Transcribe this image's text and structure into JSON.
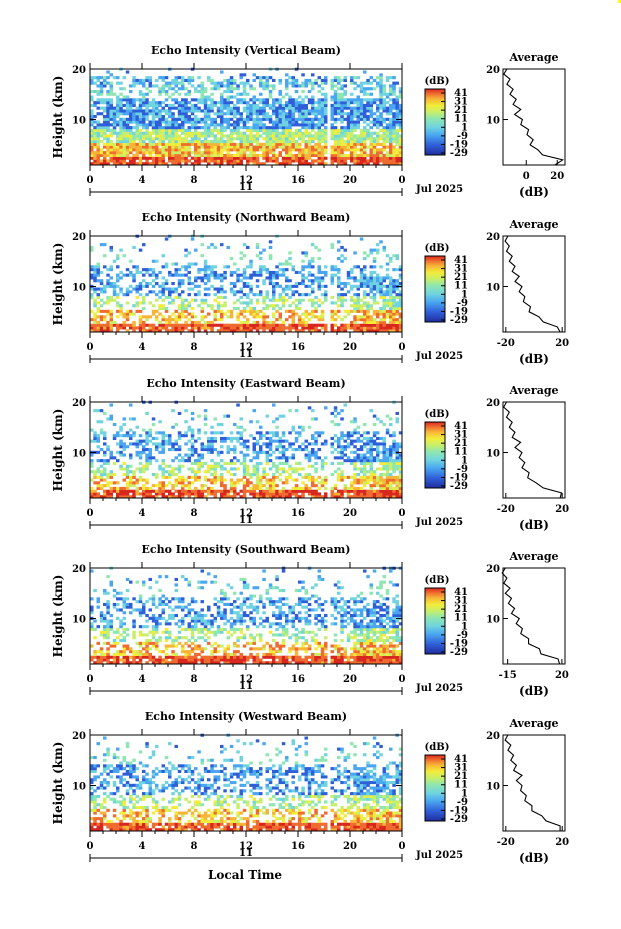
{
  "figure": {
    "xaxis_label": "Local Time",
    "date_label": "Jul 2025",
    "day_label": "11",
    "colorbar_unit": "(dB)",
    "colorbar_ticks": [
      "41",
      "31",
      "21",
      "11",
      "1",
      "-9",
      "-19",
      "-29"
    ],
    "height_axis_label": "Height (km)",
    "time_ticks": [
      "0",
      "4",
      "8",
      "12",
      "16",
      "20",
      "0"
    ],
    "height_ticks": [
      "20",
      "10"
    ],
    "avg_title": "Average",
    "avg_xlabel": "(dB)",
    "colors": {
      "scale": [
        "#202e9e",
        "#2f5fd8",
        "#4aa6f0",
        "#6fd3e0",
        "#8ee6b0",
        "#c8ef6a",
        "#f2ec3a",
        "#f7b437",
        "#ef6b2f",
        "#d8271f"
      ],
      "frame": "#000000",
      "accent_corner": "#ffff00"
    }
  },
  "chart_data": [
    {
      "type": "heatmap",
      "title": "Echo Intensity (Vertical Beam)",
      "xlabel": "",
      "ylabel": "Height (km)",
      "xlim": [
        0,
        24
      ],
      "ylim": [
        1,
        20
      ],
      "clim": [
        -29,
        41
      ],
      "average_profile": {
        "title": "Average",
        "xticks": [
          "0",
          "20"
        ],
        "xlim": [
          -15,
          25
        ],
        "height": [
          1,
          2,
          3,
          4,
          5,
          6,
          7,
          8,
          9,
          10,
          11,
          12,
          13,
          14,
          15,
          16,
          17,
          18,
          19,
          20
        ],
        "db": [
          20,
          22,
          12,
          6,
          4,
          3,
          2,
          0,
          -2,
          -4,
          -6,
          -5,
          -7,
          -8,
          -9,
          -10,
          -11,
          -12,
          -13,
          -14
        ]
      }
    },
    {
      "type": "heatmap",
      "title": "Echo Intensity (Northward Beam)",
      "xlabel": "",
      "ylabel": "Height (km)",
      "xlim": [
        0,
        24
      ],
      "ylim": [
        1,
        20
      ],
      "clim": [
        -29,
        41
      ],
      "average_profile": {
        "title": "Average",
        "xticks": [
          "-20",
          "20"
        ],
        "xlim": [
          -22,
          22
        ],
        "height": [
          1,
          2,
          3,
          4,
          5,
          6,
          7,
          8,
          9,
          10,
          11,
          12,
          13,
          14,
          15,
          16,
          17,
          18,
          19,
          20
        ],
        "db": [
          20,
          15,
          8,
          2,
          -2,
          -4,
          -6,
          -8,
          -9,
          -10,
          -12,
          -12,
          -14,
          -15,
          -16,
          -17,
          -18,
          -19,
          -19,
          -20
        ]
      }
    },
    {
      "type": "heatmap",
      "title": "Echo Intensity (Eastward Beam)",
      "xlabel": "",
      "ylabel": "Height (km)",
      "xlim": [
        0,
        24
      ],
      "ylim": [
        1,
        20
      ],
      "clim": [
        -29,
        41
      ],
      "average_profile": {
        "title": "Average",
        "xticks": [
          "-20",
          "20"
        ],
        "xlim": [
          -22,
          22
        ],
        "height": [
          1,
          2,
          3,
          4,
          5,
          6,
          7,
          8,
          9,
          10,
          11,
          12,
          13,
          14,
          15,
          16,
          17,
          18,
          19,
          20
        ],
        "db": [
          20,
          18,
          8,
          0,
          -3,
          -5,
          -7,
          -8,
          -9,
          -10,
          -12,
          -11,
          -14,
          -15,
          -16,
          -17,
          -18,
          -19,
          -20,
          -21
        ]
      }
    },
    {
      "type": "heatmap",
      "title": "Echo Intensity (Southward Beam)",
      "xlabel": "",
      "ylabel": "Height (km)",
      "xlim": [
        0,
        24
      ],
      "ylim": [
        1,
        20
      ],
      "clim": [
        -29,
        41
      ],
      "average_profile": {
        "title": "Average",
        "xticks": [
          "-15",
          "20"
        ],
        "xlim": [
          -18,
          22
        ],
        "height": [
          1,
          2,
          3,
          4,
          5,
          6,
          7,
          8,
          9,
          10,
          11,
          12,
          13,
          14,
          15,
          16,
          17,
          18,
          19,
          20
        ],
        "db": [
          20,
          16,
          8,
          4,
          0,
          -3,
          -5,
          -7,
          -8,
          -9,
          -11,
          -12,
          -13,
          -14,
          -15,
          -15,
          -16,
          -17,
          -17,
          -18
        ]
      }
    },
    {
      "type": "heatmap",
      "title": "Echo Intensity (Westward Beam)",
      "xlabel": "Local Time",
      "ylabel": "Height (km)",
      "xlim": [
        0,
        24
      ],
      "ylim": [
        1,
        20
      ],
      "clim": [
        -29,
        41
      ],
      "average_profile": {
        "title": "Average",
        "xticks": [
          "-20",
          "20"
        ],
        "xlim": [
          -22,
          22
        ],
        "height": [
          1,
          2,
          3,
          4,
          5,
          6,
          7,
          8,
          9,
          10,
          11,
          12,
          13,
          14,
          15,
          16,
          17,
          18,
          19,
          20
        ],
        "db": [
          20,
          17,
          10,
          4,
          0,
          -3,
          -5,
          -7,
          -8,
          -10,
          -11,
          -10,
          -13,
          -14,
          -15,
          -16,
          -17,
          -18,
          -19,
          -20
        ]
      }
    }
  ]
}
